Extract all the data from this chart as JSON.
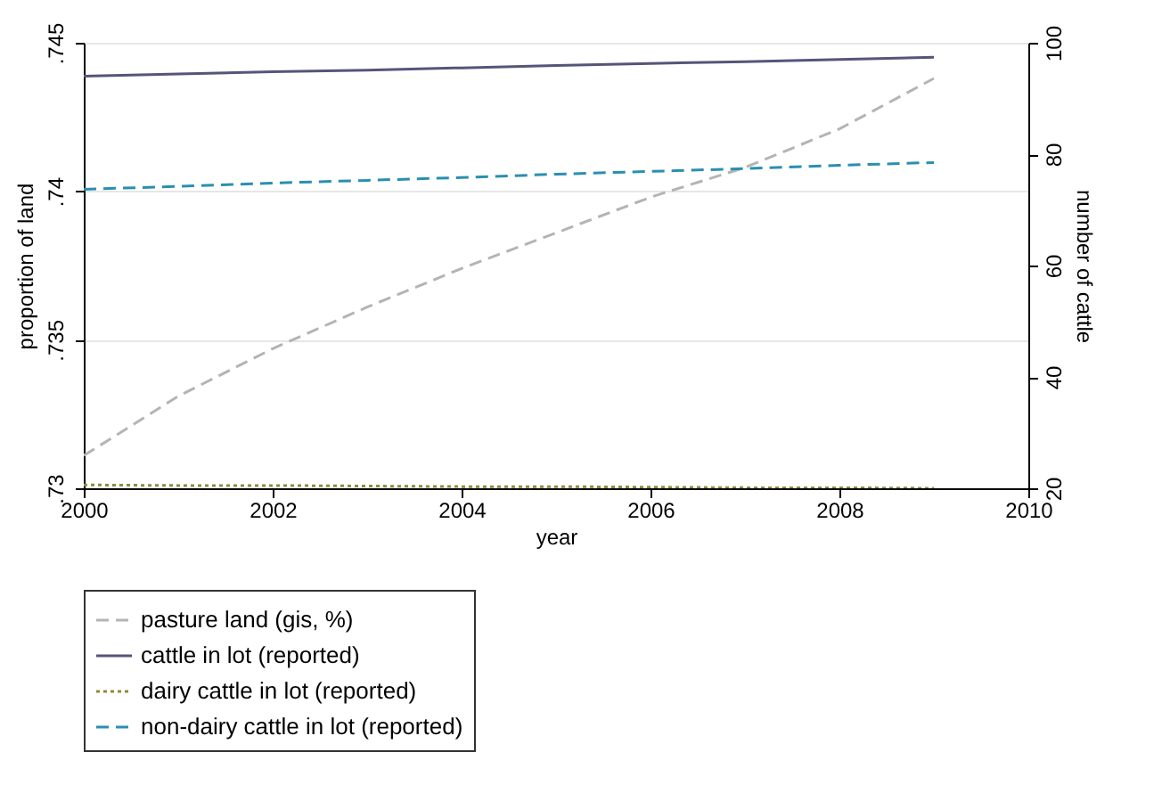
{
  "chart_data": {
    "type": "line",
    "xlabel": "year",
    "ylabel": "proportion of land",
    "y2label": "number of cattle",
    "x": [
      2000,
      2001,
      2002,
      2003,
      2004,
      2005,
      2006,
      2007,
      2008,
      2009
    ],
    "xlim": [
      2000,
      2010
    ],
    "xticks": [
      2000,
      2002,
      2004,
      2006,
      2008,
      2010
    ],
    "ylim": [
      0.73,
      0.745
    ],
    "yticks": [
      {
        "value": 0.73,
        "label": ".73"
      },
      {
        "value": 0.735,
        "label": ".735"
      },
      {
        "value": 0.74,
        "label": ".74"
      },
      {
        "value": 0.745,
        "label": ".745"
      }
    ],
    "y2lim": [
      20,
      100
    ],
    "y2ticks": [
      20,
      40,
      60,
      80,
      100
    ],
    "grid": "y",
    "legend": "bottom",
    "series": [
      {
        "name": "pasture land (gis, %)",
        "color": "#b4b4b4",
        "line_style": "dashed",
        "values": [
          0.7311,
          0.7331,
          0.7347,
          0.7361,
          0.7374,
          0.7386,
          0.7398,
          0.7408,
          0.7421,
          0.7438
        ]
      },
      {
        "name": "cattle in lot (reported)",
        "color": "#55557a",
        "line_style": "solid",
        "axis": "y2",
        "values": [
          94.0,
          94.4,
          94.8,
          95.1,
          95.5,
          95.9,
          96.3,
          96.6,
          97.0,
          97.4
        ]
      },
      {
        "name": "dairy cattle in lot (reported)",
        "color": "#8c8c3c",
        "line_style": "dotted",
        "axis": "y2",
        "values": [
          20.6,
          20.5,
          20.5,
          20.4,
          20.3,
          20.3,
          20.2,
          20.1,
          20.1,
          20.0
        ]
      },
      {
        "name": "non-dairy cattle in lot (reported)",
        "color": "#2a8fb0",
        "line_style": "dashed",
        "axis": "y2",
        "values": [
          73.7,
          74.2,
          74.8,
          75.3,
          75.8,
          76.4,
          76.9,
          77.4,
          78.0,
          78.5
        ]
      }
    ]
  }
}
